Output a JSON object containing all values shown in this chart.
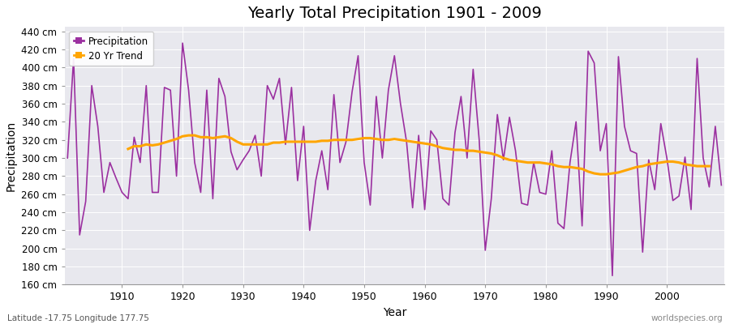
{
  "title": "Yearly Total Precipitation 1901 - 2009",
  "xlabel": "Year",
  "ylabel": "Precipitation",
  "subtitle": "Latitude -17.75 Longitude 177.75",
  "watermark": "worldspecies.org",
  "ylim": [
    160,
    445
  ],
  "line_color": "#9B30A0",
  "trend_color": "#FFA500",
  "plot_bg_color": "#E8E8EE",
  "fig_bg_color": "#ffffff",
  "grid_color": "#ffffff",
  "years": [
    1901,
    1902,
    1903,
    1904,
    1905,
    1906,
    1907,
    1908,
    1909,
    1910,
    1911,
    1912,
    1913,
    1914,
    1915,
    1916,
    1917,
    1918,
    1919,
    1920,
    1921,
    1922,
    1923,
    1924,
    1925,
    1926,
    1927,
    1928,
    1929,
    1930,
    1931,
    1932,
    1933,
    1934,
    1935,
    1936,
    1937,
    1938,
    1939,
    1940,
    1941,
    1942,
    1943,
    1944,
    1945,
    1946,
    1947,
    1948,
    1949,
    1950,
    1951,
    1952,
    1953,
    1954,
    1955,
    1956,
    1957,
    1958,
    1959,
    1960,
    1961,
    1962,
    1963,
    1964,
    1965,
    1966,
    1967,
    1968,
    1969,
    1970,
    1971,
    1972,
    1973,
    1974,
    1975,
    1976,
    1977,
    1978,
    1979,
    1980,
    1981,
    1982,
    1983,
    1984,
    1985,
    1986,
    1987,
    1988,
    1989,
    1990,
    1991,
    1992,
    1993,
    1994,
    1995,
    1996,
    1997,
    1998,
    1999,
    2000,
    2001,
    2002,
    2003,
    2004,
    2005,
    2006,
    2007,
    2008,
    2009
  ],
  "precipitation": [
    300,
    410,
    215,
    252,
    380,
    335,
    262,
    295,
    278,
    262,
    255,
    323,
    295,
    380,
    262,
    262,
    378,
    375,
    280,
    427,
    375,
    295,
    262,
    375,
    255,
    388,
    368,
    307,
    287,
    298,
    308,
    325,
    280,
    380,
    365,
    388,
    315,
    378,
    275,
    335,
    220,
    275,
    308,
    265,
    370,
    295,
    318,
    373,
    413,
    295,
    248,
    368,
    300,
    375,
    413,
    360,
    318,
    245,
    325,
    243,
    330,
    320,
    255,
    248,
    328,
    368,
    300,
    398,
    320,
    198,
    255,
    348,
    298,
    345,
    308,
    250,
    248,
    295,
    262,
    260,
    308,
    228,
    222,
    295,
    340,
    225,
    418,
    405,
    308,
    338,
    170,
    412,
    335,
    308,
    305,
    196,
    298,
    265,
    338,
    300,
    253,
    258,
    301,
    243,
    410,
    300,
    268,
    335,
    270
  ],
  "trend": [
    null,
    null,
    null,
    null,
    null,
    null,
    null,
    null,
    null,
    null,
    310,
    313,
    313,
    315,
    314,
    315,
    317,
    319,
    321,
    324,
    325,
    325,
    323,
    323,
    322,
    323,
    324,
    322,
    318,
    315,
    315,
    315,
    315,
    315,
    317,
    317,
    318,
    318,
    318,
    318,
    318,
    318,
    319,
    319,
    320,
    320,
    320,
    320,
    321,
    322,
    322,
    321,
    320,
    320,
    321,
    320,
    319,
    318,
    317,
    316,
    315,
    313,
    311,
    310,
    309,
    309,
    308,
    308,
    307,
    306,
    305,
    303,
    300,
    298,
    297,
    296,
    295,
    295,
    295,
    294,
    293,
    291,
    290,
    290,
    289,
    288,
    285,
    283,
    282,
    282,
    283,
    284,
    286,
    288,
    290,
    291,
    293,
    294,
    295,
    296,
    296,
    295,
    293,
    292,
    291,
    291,
    291,
    null,
    null
  ]
}
